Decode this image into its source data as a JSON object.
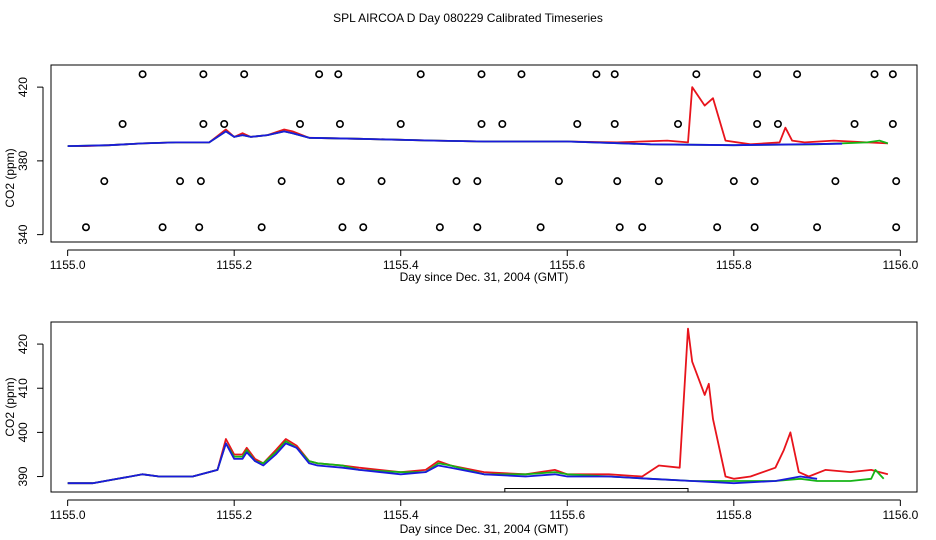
{
  "figure_title": "SPL AIRCOA D  Day 080229  Calibrated Timeseries",
  "colors": {
    "red": "#e8141c",
    "green": "#16b416",
    "blue": "#1a1adc",
    "axis": "#000000",
    "marker": "#000000"
  },
  "chart_data": [
    {
      "type": "line",
      "title": "",
      "xlabel": "Day since Dec. 31, 2004 (GMT)",
      "ylabel": "CO2 (ppm)",
      "xlim": [
        1154.98,
        1156.02
      ],
      "ylim": [
        336,
        432
      ],
      "xticks": [
        1155.0,
        1155.2,
        1155.4,
        1155.6,
        1155.8,
        1156.0
      ],
      "xtick_labels": [
        "1155.0",
        "1155.2",
        "1155.4",
        "1155.6",
        "1155.8",
        "1156.0"
      ],
      "yticks": [
        340,
        380,
        420
      ],
      "ytick_labels": [
        "340",
        "380",
        "420"
      ],
      "series": [
        {
          "name": "red",
          "color_key": "red",
          "x": [
            1155.0,
            1155.02,
            1155.05,
            1155.09,
            1155.13,
            1155.17,
            1155.19,
            1155.2,
            1155.21,
            1155.22,
            1155.24,
            1155.26,
            1155.27,
            1155.29,
            1155.35,
            1155.44,
            1155.5,
            1155.6,
            1155.66,
            1155.72,
            1155.745,
            1155.75,
            1155.765,
            1155.775,
            1155.79,
            1155.82,
            1155.855,
            1155.862,
            1155.87,
            1155.885,
            1155.92,
            1155.96,
            1155.985
          ],
          "y": [
            388,
            388,
            388.5,
            389.5,
            390,
            390,
            397,
            393,
            395,
            393,
            394,
            397,
            396,
            392.5,
            392,
            391,
            390.5,
            390.5,
            390,
            391,
            390,
            420,
            410,
            414,
            391,
            389,
            390,
            398,
            391,
            390,
            391,
            390,
            389.5
          ]
        },
        {
          "name": "green",
          "color_key": "green",
          "x": [
            1155.0,
            1155.05,
            1155.09,
            1155.13,
            1155.17,
            1155.19,
            1155.2,
            1155.21,
            1155.22,
            1155.24,
            1155.26,
            1155.27,
            1155.29,
            1155.35,
            1155.44,
            1155.5,
            1155.6,
            1155.7,
            1155.8,
            1155.9,
            1155.96,
            1155.975,
            1155.985
          ],
          "y": [
            388,
            388.5,
            389.5,
            390,
            390,
            396,
            393,
            394,
            393,
            394,
            396,
            395,
            392.5,
            392,
            391,
            390.5,
            390.5,
            389,
            388.5,
            389,
            390,
            391,
            389.5
          ]
        },
        {
          "name": "blue",
          "color_key": "blue",
          "x": [
            1155.0,
            1155.05,
            1155.09,
            1155.13,
            1155.17,
            1155.19,
            1155.2,
            1155.21,
            1155.22,
            1155.24,
            1155.26,
            1155.27,
            1155.29,
            1155.35,
            1155.44,
            1155.5,
            1155.6,
            1155.7,
            1155.8,
            1155.88,
            1155.93
          ],
          "y": [
            388,
            388.5,
            389.5,
            390,
            390,
            396,
            393,
            394,
            393,
            394,
            396,
            395,
            392.5,
            392,
            391,
            390.5,
            390.5,
            389,
            388.5,
            389,
            389.3
          ]
        }
      ],
      "markers": {
        "symbol": "circle",
        "levels": [
          {
            "y": 427,
            "x": [
              1155.09,
              1155.163,
              1155.212,
              1155.302,
              1155.325,
              1155.424,
              1155.497,
              1155.545,
              1155.635,
              1155.657,
              1155.755,
              1155.828,
              1155.876,
              1155.969,
              1155.991
            ]
          },
          {
            "y": 400,
            "x": [
              1155.066,
              1155.163,
              1155.188,
              1155.279,
              1155.327,
              1155.4,
              1155.497,
              1155.522,
              1155.612,
              1155.657,
              1155.733,
              1155.828,
              1155.853,
              1155.945,
              1155.991
            ]
          },
          {
            "y": 369,
            "x": [
              1155.044,
              1155.135,
              1155.16,
              1155.257,
              1155.328,
              1155.377,
              1155.467,
              1155.492,
              1155.59,
              1155.66,
              1155.71,
              1155.8,
              1155.825,
              1155.922,
              1155.995
            ]
          },
          {
            "y": 344,
            "x": [
              1155.022,
              1155.114,
              1155.158,
              1155.233,
              1155.33,
              1155.355,
              1155.447,
              1155.492,
              1155.568,
              1155.663,
              1155.69,
              1155.78,
              1155.825,
              1155.9,
              1155.995
            ]
          }
        ]
      }
    },
    {
      "type": "line",
      "title": "",
      "xlabel": "Day since Dec. 31, 2004 (GMT)",
      "ylabel": "CO2 (ppm)",
      "xlim": [
        1154.98,
        1156.02
      ],
      "ylim": [
        386.5,
        425
      ],
      "xticks": [
        1155.0,
        1155.2,
        1155.4,
        1155.6,
        1155.8,
        1156.0
      ],
      "xtick_labels": [
        "1155.0",
        "1155.2",
        "1155.4",
        "1155.6",
        "1155.8",
        "1156.0"
      ],
      "yticks": [
        390,
        400,
        410,
        420
      ],
      "ytick_labels": [
        "390",
        "400",
        "410",
        "420"
      ],
      "series": [
        {
          "name": "red",
          "color_key": "red",
          "x": [
            1155.0,
            1155.03,
            1155.06,
            1155.09,
            1155.11,
            1155.15,
            1155.18,
            1155.19,
            1155.2,
            1155.21,
            1155.215,
            1155.225,
            1155.235,
            1155.25,
            1155.262,
            1155.275,
            1155.29,
            1155.3,
            1155.33,
            1155.35,
            1155.4,
            1155.43,
            1155.445,
            1155.46,
            1155.5,
            1155.55,
            1155.585,
            1155.6,
            1155.65,
            1155.69,
            1155.71,
            1155.735,
            1155.745,
            1155.75,
            1155.765,
            1155.77,
            1155.775,
            1155.79,
            1155.8,
            1155.82,
            1155.85,
            1155.86,
            1155.868,
            1155.878,
            1155.89,
            1155.91,
            1155.94,
            1155.965,
            1155.975,
            1155.985
          ],
          "y": [
            388.5,
            388.5,
            389.5,
            390.5,
            390,
            390,
            391.5,
            398.5,
            395,
            395,
            396.5,
            394,
            393,
            396,
            398.5,
            397,
            393.5,
            393,
            392.5,
            392,
            391,
            391.5,
            393.5,
            392.5,
            391,
            390.5,
            391.5,
            390.5,
            390.5,
            390,
            392.5,
            392,
            423.5,
            416,
            408.5,
            411,
            403,
            390,
            389.5,
            390,
            392,
            396,
            400,
            391,
            390,
            391.5,
            391,
            391.5,
            391,
            390.5
          ]
        },
        {
          "name": "green",
          "color_key": "green",
          "x": [
            1155.0,
            1155.03,
            1155.06,
            1155.09,
            1155.11,
            1155.15,
            1155.18,
            1155.19,
            1155.2,
            1155.21,
            1155.215,
            1155.225,
            1155.235,
            1155.25,
            1155.262,
            1155.275,
            1155.29,
            1155.3,
            1155.33,
            1155.35,
            1155.4,
            1155.43,
            1155.445,
            1155.46,
            1155.5,
            1155.55,
            1155.585,
            1155.6,
            1155.65,
            1155.7,
            1155.75,
            1155.8,
            1155.85,
            1155.88,
            1155.9,
            1155.94,
            1155.965,
            1155.97,
            1155.98
          ],
          "y": [
            388.5,
            388.5,
            389.5,
            390.5,
            390,
            390,
            391.5,
            397.5,
            394.5,
            394.5,
            396,
            393.5,
            393,
            395.5,
            398,
            396.5,
            393.5,
            393,
            392.5,
            391.5,
            391,
            391,
            393,
            392.5,
            390.5,
            390.5,
            391,
            390.5,
            390,
            389.5,
            389,
            389,
            389,
            389.5,
            389,
            389,
            389.5,
            391.5,
            389.5
          ]
        },
        {
          "name": "blue",
          "color_key": "blue",
          "x": [
            1155.0,
            1155.03,
            1155.06,
            1155.09,
            1155.11,
            1155.15,
            1155.18,
            1155.19,
            1155.2,
            1155.21,
            1155.215,
            1155.225,
            1155.235,
            1155.25,
            1155.262,
            1155.275,
            1155.29,
            1155.3,
            1155.33,
            1155.35,
            1155.4,
            1155.43,
            1155.445,
            1155.46,
            1155.5,
            1155.55,
            1155.585,
            1155.6,
            1155.65,
            1155.7,
            1155.75,
            1155.8,
            1155.85,
            1155.88,
            1155.9
          ],
          "y": [
            388.5,
            388.5,
            389.5,
            390.5,
            390,
            390,
            391.5,
            397.5,
            394,
            394,
            395.5,
            393.5,
            392.5,
            395,
            397.5,
            396.5,
            393,
            392.5,
            392,
            391.5,
            390.5,
            391,
            392.5,
            392,
            390.5,
            390,
            390.5,
            390,
            390,
            389.5,
            389,
            388.5,
            389,
            390,
            389.5
          ]
        }
      ],
      "span_bar": {
        "x_start": 1155.525,
        "x_end": 1155.745,
        "y": 387.3
      }
    }
  ]
}
